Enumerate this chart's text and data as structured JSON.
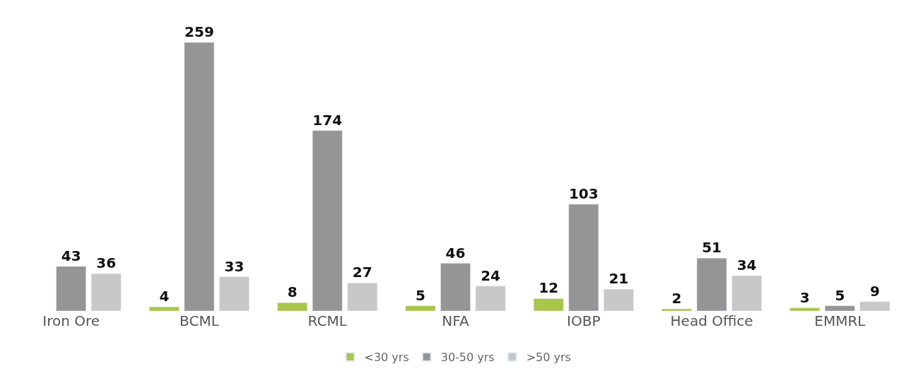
{
  "chart_data": {
    "type": "bar",
    "categories": [
      "Iron Ore",
      "BCML",
      "RCML",
      "NFA",
      "IOBP",
      "Head Office",
      "EMMRL"
    ],
    "series": [
      {
        "name": "<30 yrs",
        "color": "#a8c64a",
        "values": [
          null,
          4,
          8,
          5,
          12,
          2,
          3
        ]
      },
      {
        "name": "30-50 yrs",
        "color": "#959595",
        "values": [
          43,
          259,
          174,
          46,
          103,
          51,
          5
        ]
      },
      {
        "name": ">50 yrs",
        "color": "#c8c8c8",
        "values": [
          36,
          33,
          27,
          24,
          21,
          34,
          9
        ]
      }
    ],
    "data_labels": true,
    "legend": "bottom",
    "tick_labels": "x"
  }
}
